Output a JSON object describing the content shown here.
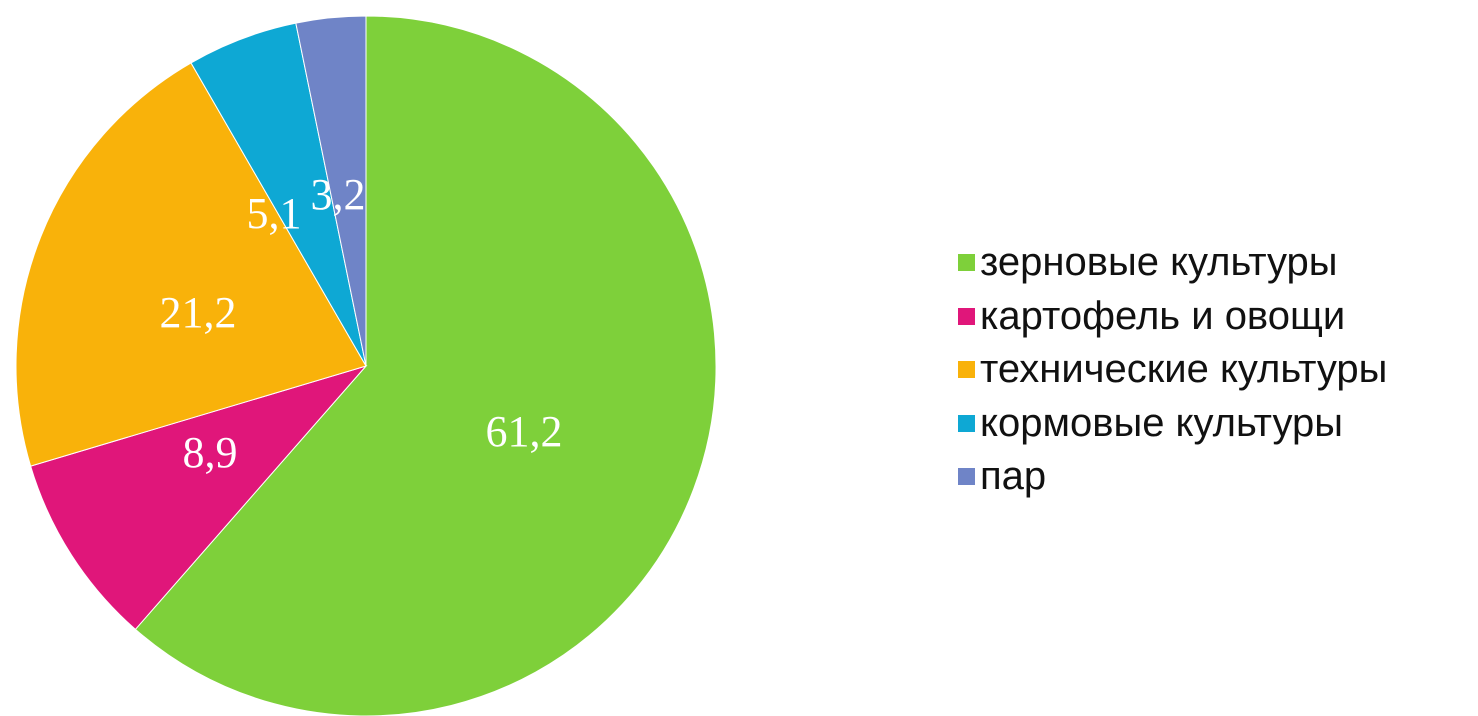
{
  "chart_data": {
    "type": "pie",
    "categories": [
      "зерновые культуры",
      "картофель и овощи",
      "технические культуры",
      "кормовые культуры",
      "пар"
    ],
    "values": [
      61.2,
      8.9,
      21.2,
      5.1,
      3.2
    ],
    "data_labels": [
      "61,2",
      "8,9",
      "21,2",
      "5,1",
      "3,2"
    ],
    "colors": [
      "#7ed03a",
      "#e0167a",
      "#f9b20a",
      "#0ea8d4",
      "#6f84c7"
    ],
    "start_angle_deg": 0,
    "direction": "clockwise",
    "legend_position": "right"
  }
}
